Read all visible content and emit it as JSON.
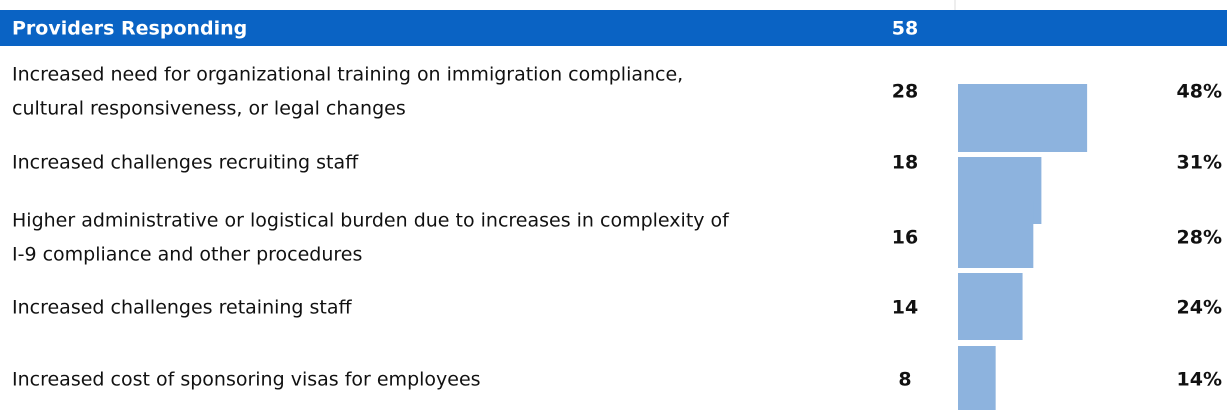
{
  "header": {
    "label": "Providers Responding",
    "count": 58
  },
  "rows": [
    {
      "label_lines": [
        "Increased need for organizational training on immigration compliance,",
        "cultural responsiveness, or legal changes"
      ],
      "count": 28,
      "percent": 48,
      "percent_label": "48%"
    },
    {
      "label_lines": [
        "Increased challenges recruiting staff"
      ],
      "count": 18,
      "percent": 31,
      "percent_label": "31%"
    },
    {
      "label_lines": [
        "Higher administrative or logistical burden due to increases in complexity of",
        "I-9 compliance and other procedures"
      ],
      "count": 16,
      "percent": 28,
      "percent_label": "28%"
    },
    {
      "label_lines": [
        "Increased challenges retaining staff"
      ],
      "count": 14,
      "percent": 24,
      "percent_label": "24%"
    },
    {
      "label_lines": [
        "Increased cost of sponsoring visas for employees"
      ],
      "count": 8,
      "percent": 14,
      "percent_label": "14%"
    }
  ]
}
